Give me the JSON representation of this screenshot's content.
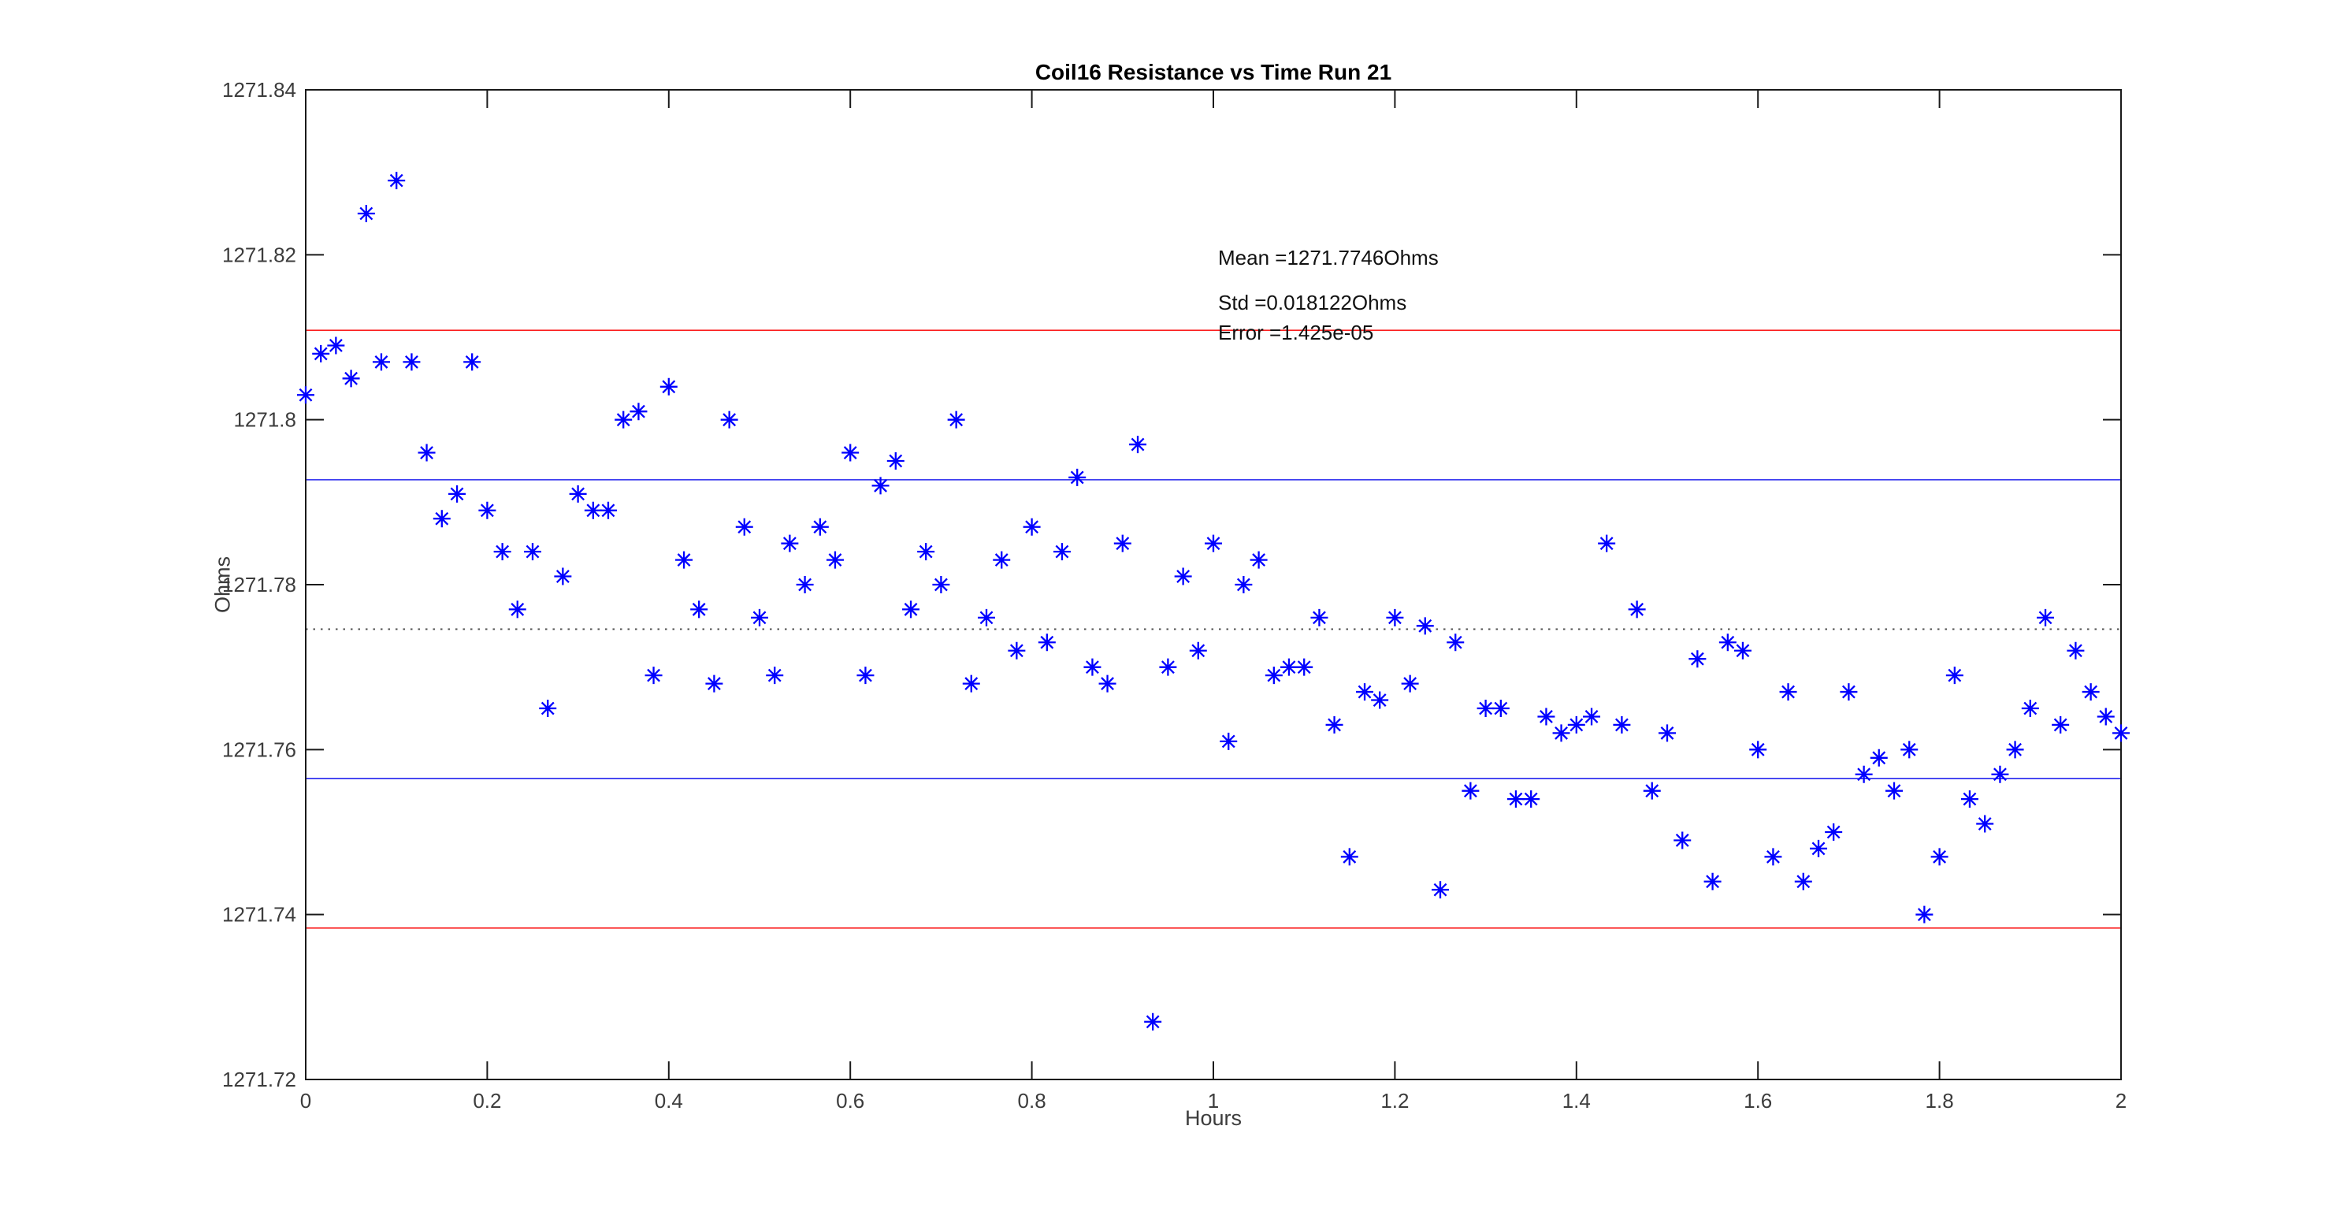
{
  "page": {
    "background": "#ffffff"
  },
  "chart_data": {
    "type": "scatter",
    "title": "Coil16 Resistance vs Time Run 21",
    "xlabel": "Hours",
    "ylabel": "Ohms",
    "xlim": [
      0,
      2
    ],
    "ylim": [
      1271.72,
      1271.84
    ],
    "grid": false,
    "legend": "none",
    "xticks": {
      "values": [
        0,
        0.2,
        0.4,
        0.6,
        0.8,
        1,
        1.2,
        1.4,
        1.6,
        1.8,
        2
      ],
      "labels": [
        "0",
        "0.2",
        "0.4",
        "0.6",
        "0.8",
        "1",
        "1.2",
        "1.4",
        "1.6",
        "1.8",
        "2"
      ]
    },
    "yticks": {
      "values": [
        1271.72,
        1271.74,
        1271.76,
        1271.78,
        1271.8,
        1271.82,
        1271.84
      ],
      "labels": [
        "1271.72",
        "1271.74",
        "1271.76",
        "1271.78",
        "1271.8",
        "1271.82",
        "1271.84"
      ]
    },
    "stats": {
      "mean_ohms": 1271.7746,
      "std_ohms": 0.018122,
      "error": "1.425e-05"
    },
    "annotation": {
      "mean_label": "Mean =1271.7746Ohms",
      "std_label": "Std =0.018122Ohms",
      "error_label": "Error =1.425e-05"
    },
    "reference_lines": [
      {
        "name": "mean-plus-2std",
        "value": 1271.81084,
        "color": "#fb2020",
        "style": "solid"
      },
      {
        "name": "mean-plus-1std",
        "value": 1271.79272,
        "color": "#2222ee",
        "style": "solid"
      },
      {
        "name": "mean",
        "value": 1271.7746,
        "color": "#4d4d4d",
        "style": "dotted"
      },
      {
        "name": "mean-minus-1std",
        "value": 1271.75648,
        "color": "#2222ee",
        "style": "solid"
      },
      {
        "name": "mean-minus-2std",
        "value": 1271.73836,
        "color": "#fb2020",
        "style": "solid"
      }
    ],
    "marker": {
      "shape": "asterisk",
      "color": "#0000ff"
    },
    "series": [
      {
        "name": "coil16-resistance",
        "points": [
          [
            0.0,
            1271.803
          ],
          [
            0.0167,
            1271.808
          ],
          [
            0.0333,
            1271.809
          ],
          [
            0.05,
            1271.805
          ],
          [
            0.0667,
            1271.825
          ],
          [
            0.0833,
            1271.807
          ],
          [
            0.1,
            1271.829
          ],
          [
            0.1167,
            1271.807
          ],
          [
            0.1333,
            1271.796
          ],
          [
            0.15,
            1271.788
          ],
          [
            0.1667,
            1271.791
          ],
          [
            0.1833,
            1271.807
          ],
          [
            0.2,
            1271.789
          ],
          [
            0.2167,
            1271.784
          ],
          [
            0.2333,
            1271.777
          ],
          [
            0.25,
            1271.784
          ],
          [
            0.2667,
            1271.765
          ],
          [
            0.2833,
            1271.781
          ],
          [
            0.3,
            1271.791
          ],
          [
            0.3167,
            1271.789
          ],
          [
            0.3333,
            1271.789
          ],
          [
            0.35,
            1271.8
          ],
          [
            0.3667,
            1271.801
          ],
          [
            0.3833,
            1271.769
          ],
          [
            0.4,
            1271.804
          ],
          [
            0.4167,
            1271.783
          ],
          [
            0.4333,
            1271.777
          ],
          [
            0.45,
            1271.768
          ],
          [
            0.4667,
            1271.8
          ],
          [
            0.4833,
            1271.787
          ],
          [
            0.5,
            1271.776
          ],
          [
            0.5167,
            1271.769
          ],
          [
            0.5333,
            1271.785
          ],
          [
            0.55,
            1271.78
          ],
          [
            0.5667,
            1271.787
          ],
          [
            0.5833,
            1271.783
          ],
          [
            0.6,
            1271.796
          ],
          [
            0.6167,
            1271.769
          ],
          [
            0.6333,
            1271.792
          ],
          [
            0.65,
            1271.795
          ],
          [
            0.6667,
            1271.777
          ],
          [
            0.6833,
            1271.784
          ],
          [
            0.7,
            1271.78
          ],
          [
            0.7167,
            1271.8
          ],
          [
            0.7333,
            1271.768
          ],
          [
            0.75,
            1271.776
          ],
          [
            0.7667,
            1271.783
          ],
          [
            0.7833,
            1271.772
          ],
          [
            0.8,
            1271.787
          ],
          [
            0.8167,
            1271.773
          ],
          [
            0.8333,
            1271.784
          ],
          [
            0.85,
            1271.793
          ],
          [
            0.8667,
            1271.77
          ],
          [
            0.8833,
            1271.768
          ],
          [
            0.9,
            1271.785
          ],
          [
            0.9167,
            1271.797
          ],
          [
            0.9333,
            1271.727
          ],
          [
            0.95,
            1271.77
          ],
          [
            0.9667,
            1271.781
          ],
          [
            0.9833,
            1271.772
          ],
          [
            1.0,
            1271.785
          ],
          [
            1.0167,
            1271.761
          ],
          [
            1.0333,
            1271.78
          ],
          [
            1.05,
            1271.783
          ],
          [
            1.0667,
            1271.769
          ],
          [
            1.0833,
            1271.77
          ],
          [
            1.1,
            1271.77
          ],
          [
            1.1167,
            1271.776
          ],
          [
            1.1333,
            1271.763
          ],
          [
            1.15,
            1271.747
          ],
          [
            1.1667,
            1271.767
          ],
          [
            1.1833,
            1271.766
          ],
          [
            1.2,
            1271.776
          ],
          [
            1.2167,
            1271.768
          ],
          [
            1.2333,
            1271.775
          ],
          [
            1.25,
            1271.743
          ],
          [
            1.2667,
            1271.773
          ],
          [
            1.2833,
            1271.755
          ],
          [
            1.3,
            1271.765
          ],
          [
            1.3167,
            1271.765
          ],
          [
            1.3333,
            1271.754
          ],
          [
            1.35,
            1271.754
          ],
          [
            1.3667,
            1271.764
          ],
          [
            1.3833,
            1271.762
          ],
          [
            1.4,
            1271.763
          ],
          [
            1.4167,
            1271.764
          ],
          [
            1.4333,
            1271.785
          ],
          [
            1.45,
            1271.763
          ],
          [
            1.4667,
            1271.777
          ],
          [
            1.4833,
            1271.755
          ],
          [
            1.5,
            1271.762
          ],
          [
            1.5167,
            1271.749
          ],
          [
            1.5333,
            1271.771
          ],
          [
            1.55,
            1271.744
          ],
          [
            1.5667,
            1271.773
          ],
          [
            1.5833,
            1271.772
          ],
          [
            1.6,
            1271.76
          ],
          [
            1.6167,
            1271.747
          ],
          [
            1.6333,
            1271.767
          ],
          [
            1.65,
            1271.744
          ],
          [
            1.6667,
            1271.748
          ],
          [
            1.6833,
            1271.75
          ],
          [
            1.7,
            1271.767
          ],
          [
            1.7167,
            1271.757
          ],
          [
            1.7333,
            1271.759
          ],
          [
            1.75,
            1271.755
          ],
          [
            1.7667,
            1271.76
          ],
          [
            1.7833,
            1271.74
          ],
          [
            1.8,
            1271.747
          ],
          [
            1.8167,
            1271.769
          ],
          [
            1.8333,
            1271.754
          ],
          [
            1.85,
            1271.751
          ],
          [
            1.8667,
            1271.757
          ],
          [
            1.8833,
            1271.76
          ],
          [
            1.9,
            1271.765
          ],
          [
            1.9167,
            1271.776
          ],
          [
            1.9333,
            1271.763
          ],
          [
            1.95,
            1271.772
          ],
          [
            1.9667,
            1271.767
          ],
          [
            1.9833,
            1271.764
          ],
          [
            2.0,
            1271.762
          ]
        ]
      }
    ]
  }
}
